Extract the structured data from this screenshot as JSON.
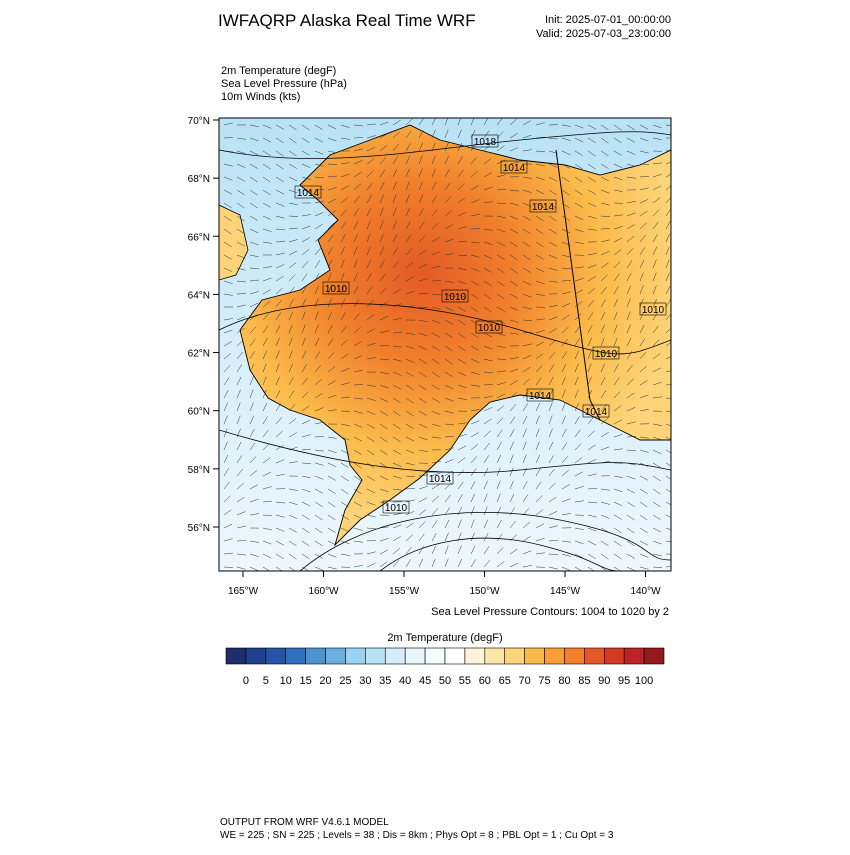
{
  "header": {
    "title": "IWFAQRP Alaska Real Time WRF",
    "init": "Init: 2025-07-01_00:00:00",
    "valid": "Valid: 2025-07-03_23:00:00"
  },
  "fields": [
    "2m Temperature   (degF)",
    "Sea Level Pressure   (hPa)",
    "10m Winds   (kts)"
  ],
  "map": {
    "lat_ticks": [
      {
        "value": 70,
        "label": "70°N"
      },
      {
        "value": 68,
        "label": "68°N"
      },
      {
        "value": 66,
        "label": "66°N"
      },
      {
        "value": 64,
        "label": "64°N"
      },
      {
        "value": 62,
        "label": "62°N"
      },
      {
        "value": 60,
        "label": "60°N"
      },
      {
        "value": 58,
        "label": "58°N"
      },
      {
        "value": 56,
        "label": "56°N"
      }
    ],
    "lon_ticks": [
      {
        "value": -165,
        "label": "165°W"
      },
      {
        "value": -160,
        "label": "160°W"
      },
      {
        "value": -155,
        "label": "155°W"
      },
      {
        "value": -150,
        "label": "150°W"
      },
      {
        "value": -145,
        "label": "145°W"
      },
      {
        "value": -140,
        "label": "140°W"
      }
    ],
    "contour_labels": [
      "1018",
      "1014",
      "1014",
      "1014",
      "1010",
      "1010",
      "1010",
      "1010",
      "1010",
      "1014",
      "1014",
      "1014",
      "1010"
    ],
    "contour_note": "Sea Level Pressure Contours: 1004 to 1020 by 2"
  },
  "colorbar": {
    "title": "2m Temperature  (degF)",
    "levels": [
      0,
      5,
      10,
      15,
      20,
      25,
      30,
      35,
      40,
      45,
      50,
      55,
      60,
      65,
      70,
      75,
      80,
      85,
      90,
      95,
      100
    ],
    "colors": [
      "#1c2e6e",
      "#1f3f8f",
      "#2453a8",
      "#2e6fc0",
      "#4d93d1",
      "#6db0e0",
      "#9ad3f2",
      "#b8e2f5",
      "#d6eefa",
      "#e8f5fb",
      "#f5fafd",
      "#ffffff",
      "#fdf3d8",
      "#fde6a8",
      "#fdd479",
      "#fbbb4a",
      "#f79f33",
      "#f07f2b",
      "#e35a26",
      "#d33a22",
      "#bb2324",
      "#921a1c"
    ]
  },
  "footer": [
    "OUTPUT FROM WRF V4.6.1 MODEL",
    "WE = 225 ; SN = 225 ; Levels = 38 ; Dis = 8km ; Phys Opt = 8 ; PBL Opt = 1 ; Cu Opt = 3"
  ]
}
